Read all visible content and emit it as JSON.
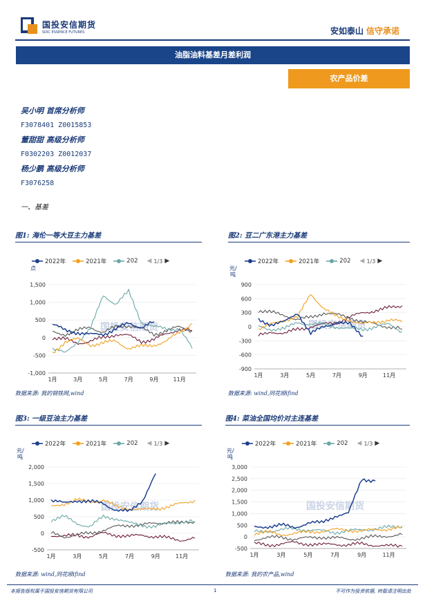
{
  "header": {
    "logo_cn": "国投安信期货",
    "logo_en": "SDIC ESSENCE FUTURES",
    "slogan_1": "安如泰山",
    "slogan_2": "信守承诺"
  },
  "title": "油脂油料基差月差利润",
  "category": "农产品价差",
  "analysts": [
    {
      "name": "吴小明  首席分析师",
      "code": "F3078401  Z0015853"
    },
    {
      "name": "董甜甜  高级分析师",
      "code": "F0302203  Z0012037"
    },
    {
      "name": "杨少鹏  高级分析师",
      "code": "F3076258"
    }
  ],
  "section_title": "一、基差",
  "legend": {
    "s1": "2022年",
    "s2": "2021年",
    "s3": "202",
    "page": "1/3",
    "prev": "◀",
    "next": "▶"
  },
  "colors": {
    "y2022": "#1d3f8f",
    "y2021": "#f0a020",
    "y2020": "#6aa7a7",
    "gray": "#555555",
    "maroon": "#6b1a3a"
  },
  "watermark": "国投安信期货",
  "figures": [
    {
      "title": "图1: 海伦一等大豆主力基差",
      "unit": "点",
      "source": "数据来源: 我的钢铁网,wind",
      "yticks": [
        "1,500",
        "1,000",
        "500",
        "0",
        "-500",
        "-1,000"
      ],
      "xticks": [
        "1月",
        "3月",
        "5月",
        "7月",
        "9月",
        "11月"
      ]
    },
    {
      "title": "图2: 豆二广东港主力基差",
      "unit": "元/吨",
      "source": "数据来源: wind,同花顺ifind",
      "yticks": [
        "900",
        "600",
        "300",
        "0",
        "-300",
        "-600",
        "-900"
      ],
      "xticks": [
        "1月",
        "3月",
        "5月",
        "7月",
        "9月",
        "11月"
      ]
    },
    {
      "title": "图3: 一级豆油主力基差",
      "unit": "元/吨",
      "source": "数据来源: wind,同花顺ifind",
      "yticks": [
        "2,000",
        "1,500",
        "1,000",
        "500",
        "0",
        "-500"
      ],
      "xticks": [
        "1月",
        "3月",
        "5月",
        "7月",
        "9月",
        "11月"
      ]
    },
    {
      "title": "图4: 菜油全国均价对主连基差",
      "unit": "元/吨",
      "source": "数据来源: 我的农产品,wind",
      "yticks": [
        "3,000",
        "2,500",
        "2,000",
        "1,500",
        "1,000",
        "500",
        "0",
        "-500"
      ],
      "xticks": [
        "1月",
        "3月",
        "5月",
        "7月",
        "9月",
        "11月"
      ]
    }
  ],
  "footer": {
    "left": "本报告版权属于国投安信期货有限公司",
    "page": "1",
    "right": "不可作为投资依据, 转载请注明出处"
  },
  "chart_data": [
    {
      "type": "line",
      "title": "图1: 海伦一等大豆主力基差",
      "ylim": [
        -1000,
        1500
      ],
      "x": [
        "1月",
        "2月",
        "3月",
        "4月",
        "5月",
        "6月",
        "7月",
        "8月",
        "9月",
        "10月",
        "11月",
        "12月"
      ],
      "series": [
        {
          "name": "2022年",
          "values": [
            380,
            200,
            150,
            80,
            100,
            250,
            400,
            300,
            450,
            null,
            null,
            null
          ]
        },
        {
          "name": "2021年",
          "values": [
            -450,
            -100,
            -50,
            -200,
            -150,
            -100,
            -300,
            -250,
            -200,
            -100,
            150,
            400
          ]
        },
        {
          "name": "202",
          "values": [
            -300,
            -450,
            -100,
            250,
            1200,
            950,
            1300,
            450,
            300,
            250,
            250,
            -300
          ]
        },
        {
          "values": [
            150,
            100,
            200,
            300,
            150,
            300,
            350,
            250,
            100,
            200,
            300,
            200
          ]
        },
        {
          "values": [
            0,
            -50,
            -150,
            -100,
            0,
            100,
            50,
            -100,
            -50,
            100,
            250,
            200
          ]
        }
      ]
    },
    {
      "type": "line",
      "title": "图2: 豆二广东港主力基差",
      "ylim": [
        -900,
        900
      ],
      "x": [
        "1月",
        "2月",
        "3月",
        "4月",
        "5月",
        "6月",
        "7月",
        "8月",
        "9月",
        "10月",
        "11月",
        "12月"
      ],
      "series": [
        {
          "name": "2022年",
          "values": [
            150,
            50,
            100,
            300,
            -150,
            0,
            100,
            50,
            -200,
            null,
            null,
            null
          ]
        },
        {
          "name": "2021年",
          "values": [
            -50,
            50,
            150,
            200,
            700,
            400,
            200,
            150,
            50,
            100,
            150,
            100
          ]
        },
        {
          "name": "202",
          "values": [
            0,
            -50,
            -50,
            100,
            50,
            50,
            0,
            -50,
            -50,
            0,
            50,
            -100
          ]
        },
        {
          "values": [
            350,
            300,
            250,
            150,
            200,
            300,
            250,
            200,
            100,
            50,
            0,
            -50
          ]
        },
        {
          "values": [
            -200,
            -100,
            -150,
            -50,
            0,
            50,
            100,
            200,
            300,
            350,
            400,
            450
          ]
        }
      ]
    },
    {
      "type": "line",
      "title": "图3: 一级豆油主力基差",
      "ylim": [
        -500,
        2000
      ],
      "x": [
        "1月",
        "2月",
        "3月",
        "4月",
        "5月",
        "6月",
        "7月",
        "8月",
        "9月",
        "10月",
        "11月",
        "12月"
      ],
      "series": [
        {
          "name": "2022年",
          "values": [
            1000,
            900,
            1000,
            950,
            900,
            700,
            650,
            1000,
            1800,
            null,
            null,
            null
          ]
        },
        {
          "name": "2021年",
          "values": [
            800,
            900,
            1000,
            950,
            1000,
            800,
            750,
            700,
            750,
            800,
            900,
            1000
          ]
        },
        {
          "name": "202",
          "values": [
            400,
            500,
            300,
            200,
            500,
            450,
            300,
            250,
            200,
            300,
            350,
            350
          ]
        },
        {
          "values": [
            0,
            -100,
            -50,
            0,
            100,
            200,
            250,
            250,
            300,
            350,
            300,
            350
          ]
        },
        {
          "values": [
            -50,
            -100,
            -50,
            -100,
            0,
            -50,
            -100,
            -50,
            -100,
            -150,
            -200,
            -150
          ]
        }
      ]
    },
    {
      "type": "line",
      "title": "图4: 菜油全国均价对主连基差",
      "ylim": [
        -500,
        3000
      ],
      "x": [
        "1月",
        "2月",
        "3月",
        "4月",
        "5月",
        "6月",
        "7月",
        "8月",
        "9月",
        "10月",
        "11月",
        "12月"
      ],
      "series": [
        {
          "name": "2022年",
          "values": [
            400,
            450,
            500,
            400,
            600,
            600,
            900,
            1000,
            2500,
            2400,
            null,
            null
          ]
        },
        {
          "name": "2021年",
          "values": [
            150,
            200,
            100,
            150,
            200,
            250,
            300,
            300,
            250,
            300,
            350,
            400
          ]
        },
        {
          "name": "202",
          "values": [
            200,
            250,
            300,
            350,
            300,
            250,
            200,
            250,
            300,
            350,
            400,
            450
          ]
        },
        {
          "values": [
            -100,
            -50,
            0,
            -100,
            -50,
            0,
            -50,
            -100,
            -50,
            0,
            50,
            100
          ]
        },
        {
          "values": [
            -300,
            -350,
            -300,
            -250,
            -300,
            -350,
            -300,
            -350,
            -300,
            -350,
            -400,
            -400
          ]
        }
      ]
    }
  ]
}
